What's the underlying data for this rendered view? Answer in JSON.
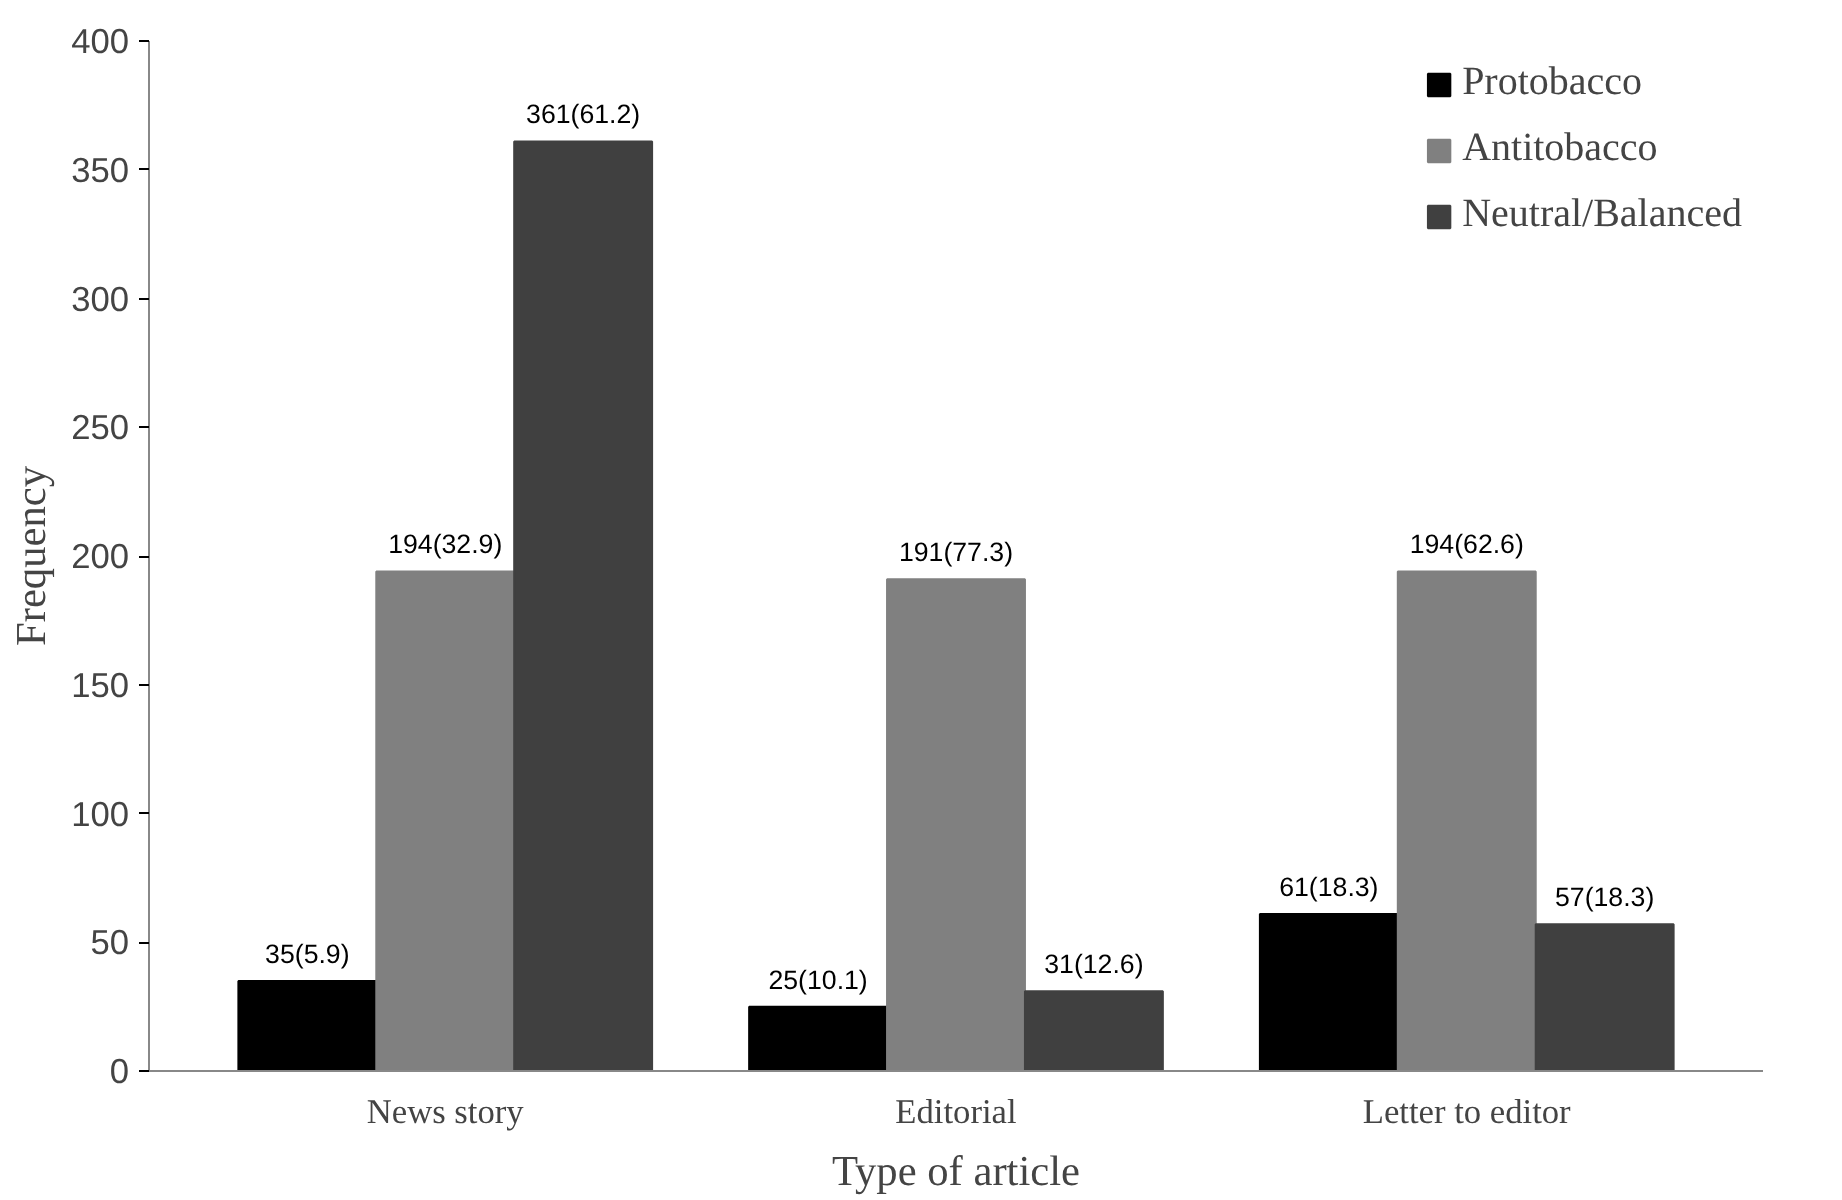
{
  "chart_data": {
    "type": "bar",
    "xlabel": "Type of article",
    "ylabel": "Frequency",
    "categories": [
      "News story",
      "Editorial",
      "Letter to editor"
    ],
    "series": [
      {
        "name": "Protobacco",
        "color": "#000000",
        "values": [
          35,
          25,
          61
        ],
        "value_labels": [
          "35(5.9)",
          "25(10.1)",
          "61(18.3)"
        ]
      },
      {
        "name": "Antitobacco",
        "color": "#808080",
        "values": [
          194,
          191,
          194
        ],
        "value_labels": [
          "194(32.9)",
          "191(77.3)",
          "194(62.6)"
        ]
      },
      {
        "name": "Neutral/Balanced",
        "color": "#404040",
        "values": [
          361,
          31,
          57
        ],
        "value_labels": [
          "361(61.2)",
          "31(12.6)",
          "57(18.3)"
        ]
      }
    ],
    "ylim": [
      0,
      400
    ],
    "yticks": [
      0,
      50,
      100,
      150,
      200,
      250,
      300,
      350,
      400
    ],
    "legend": "top right"
  }
}
